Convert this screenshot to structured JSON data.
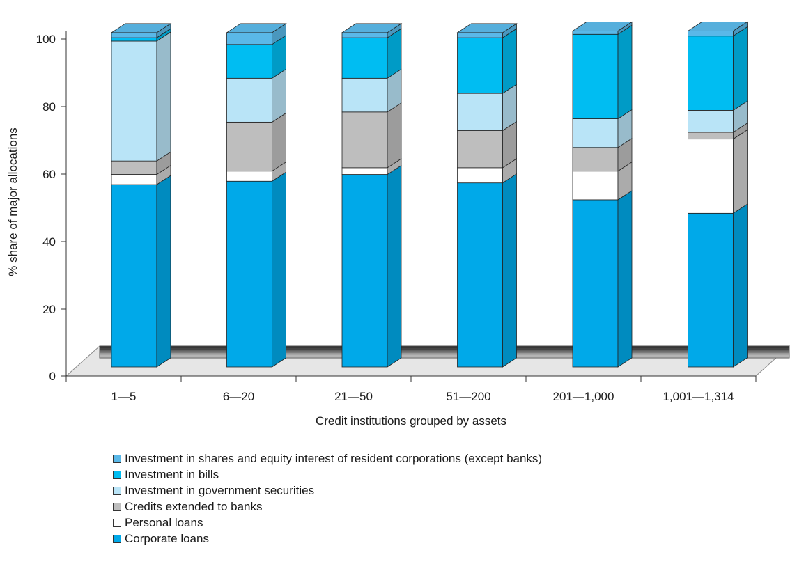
{
  "chart_data": {
    "type": "bar",
    "stacked": true,
    "style": "3d",
    "title": "",
    "xlabel": "Credit institutions grouped by assets",
    "ylabel": "% share of major allocations",
    "ylim": [
      0,
      100
    ],
    "yticks": [
      "0",
      "20",
      "40",
      "60",
      "80",
      "100"
    ],
    "grid": false,
    "legend_position": "bottom",
    "categories": [
      "1—5",
      "6—20",
      "21—50",
      "51—200",
      "201—1,000",
      "1,001—1,314"
    ],
    "series": [
      {
        "name": "Corporate loans",
        "color": "#00a9e9",
        "values": [
          54,
          55,
          57,
          54.5,
          49.5,
          45.5
        ]
      },
      {
        "name": "Personal loans",
        "color": "#ffffff",
        "values": [
          3,
          3,
          2,
          4.5,
          8.5,
          22
        ]
      },
      {
        "name": "Credits  extended to banks",
        "color": "#bebebe",
        "values": [
          4,
          14.5,
          16.5,
          11,
          7,
          2
        ]
      },
      {
        "name": "Investment in government securities",
        "color": "#b9e4f7",
        "values": [
          35.5,
          13,
          10,
          11,
          8.5,
          6.5
        ]
      },
      {
        "name": "Investment in bills",
        "color": "#00bdf2",
        "values": [
          1,
          10,
          12,
          16.5,
          25,
          22
        ]
      },
      {
        "name": "Investment in shares and equity interest of resident corporations (except banks)",
        "color": "#5ab8e8",
        "values": [
          1.5,
          3.5,
          1.5,
          1.5,
          1,
          1.5
        ]
      }
    ],
    "legend_order": [
      "Investment in shares and equity interest of resident corporations (except banks)",
      "Investment in bills",
      "Investment in government securities",
      "Credits  extended to banks",
      "Personal loans",
      "Corporate loans"
    ]
  }
}
